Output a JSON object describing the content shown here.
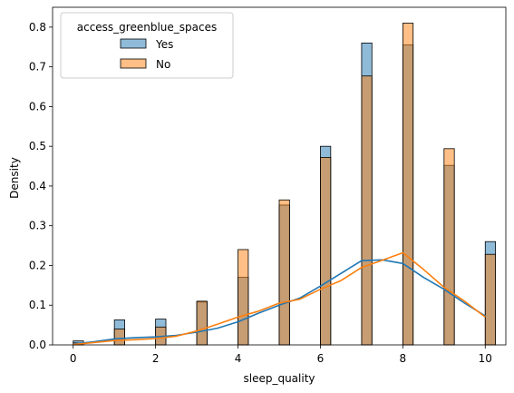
{
  "chart_data": {
    "type": "histogram",
    "xlabel": "sleep_quality",
    "ylabel": "Density",
    "xlim": [
      -0.5,
      10.5
    ],
    "ylim": [
      0,
      0.85
    ],
    "xticks": [
      0,
      2,
      4,
      6,
      8,
      10
    ],
    "yticks": [
      0.0,
      0.1,
      0.2,
      0.3,
      0.4,
      0.5,
      0.6,
      0.7,
      0.8
    ],
    "xtick_labels": [
      "0",
      "2",
      "4",
      "6",
      "8",
      "10"
    ],
    "ytick_labels": [
      "0.0",
      "0.1",
      "0.2",
      "0.3",
      "0.4",
      "0.5",
      "0.6",
      "0.7",
      "0.8"
    ],
    "bin_width": 0.25,
    "legend": {
      "title": "access_greenblue_spaces",
      "position": "top-left",
      "entries": [
        "Yes",
        "No"
      ]
    },
    "series": [
      {
        "name": "Yes",
        "color": "#1f77b4",
        "bins": [
          0,
          1,
          2,
          3,
          4,
          5,
          6,
          7,
          8,
          9,
          10
        ],
        "values": [
          0.01,
          0.063,
          0.065,
          0.108,
          0.17,
          0.352,
          0.5,
          0.76,
          0.755,
          0.452,
          0.26
        ],
        "kde": [
          [
            0,
            0.002
          ],
          [
            0.5,
            0.008
          ],
          [
            1,
            0.015
          ],
          [
            1.5,
            0.018
          ],
          [
            2,
            0.02
          ],
          [
            2.5,
            0.024
          ],
          [
            3,
            0.032
          ],
          [
            3.5,
            0.042
          ],
          [
            4,
            0.058
          ],
          [
            4.5,
            0.08
          ],
          [
            5,
            0.1
          ],
          [
            5.5,
            0.118
          ],
          [
            6,
            0.148
          ],
          [
            6.5,
            0.18
          ],
          [
            7,
            0.212
          ],
          [
            7.5,
            0.214
          ],
          [
            8,
            0.205
          ],
          [
            8.5,
            0.17
          ],
          [
            9,
            0.14
          ],
          [
            9.5,
            0.105
          ],
          [
            10,
            0.073
          ]
        ]
      },
      {
        "name": "No",
        "color": "#ff7f0e",
        "bins": [
          0,
          1,
          2,
          3,
          4,
          5,
          6,
          7,
          8,
          9,
          10
        ],
        "values": [
          0.005,
          0.04,
          0.045,
          0.11,
          0.24,
          0.365,
          0.472,
          0.677,
          0.81,
          0.494,
          0.228
        ],
        "kde": [
          [
            0,
            0.001
          ],
          [
            0.5,
            0.006
          ],
          [
            1,
            0.011
          ],
          [
            1.5,
            0.013
          ],
          [
            2,
            0.016
          ],
          [
            2.5,
            0.022
          ],
          [
            3,
            0.035
          ],
          [
            3.5,
            0.052
          ],
          [
            4,
            0.07
          ],
          [
            4.5,
            0.085
          ],
          [
            5,
            0.105
          ],
          [
            5.5,
            0.115
          ],
          [
            6,
            0.14
          ],
          [
            6.5,
            0.162
          ],
          [
            7,
            0.195
          ],
          [
            7.5,
            0.213
          ],
          [
            8,
            0.232
          ],
          [
            8.5,
            0.19
          ],
          [
            9,
            0.145
          ],
          [
            9.5,
            0.11
          ],
          [
            10,
            0.07
          ]
        ]
      }
    ]
  }
}
